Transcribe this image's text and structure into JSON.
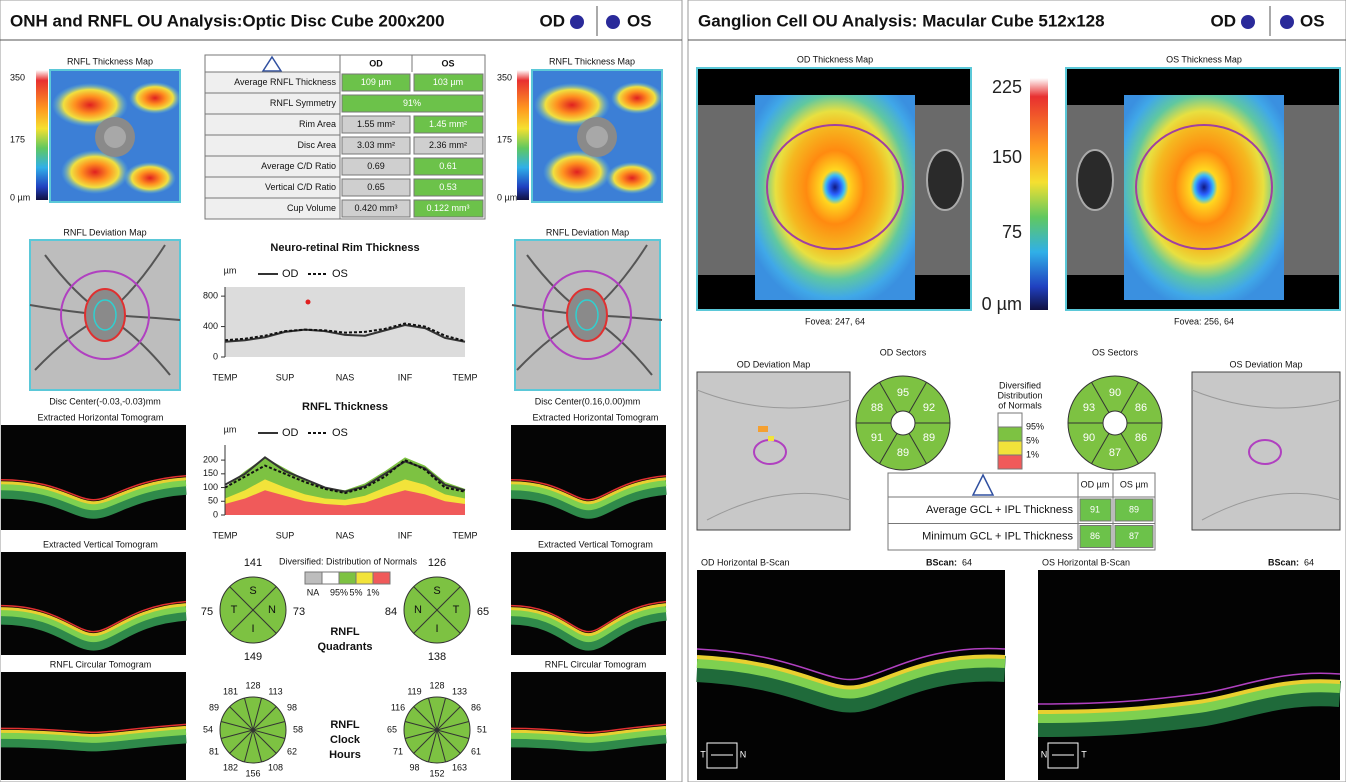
{
  "left": {
    "title": "ONH and RNFL OU Analysis:Optic Disc Cube 200x200",
    "od": "OD",
    "os": "OS",
    "thickness_map_od": {
      "title": "RNFL Thickness Map",
      "scale": [
        "350",
        "175",
        "0 µm"
      ]
    },
    "thickness_map_os": {
      "title": "RNFL Thickness Map",
      "scale": [
        "350",
        "175",
        "0 µm"
      ]
    },
    "table": {
      "header": [
        "OD",
        "OS"
      ],
      "rows": [
        {
          "label": "Average RNFL Thickness",
          "od": "109 µm",
          "os": "103 µm",
          "od_fill": "#6cc24a",
          "os_fill": "#6cc24a"
        },
        {
          "label": "RNFL Symmetry",
          "value": "91%",
          "fill": "#6cc24a"
        },
        {
          "label": "Rim Area",
          "od": "1.55 mm²",
          "os": "1.45 mm²",
          "od_fill": "#cfcfcf",
          "os_fill": "#6cc24a"
        },
        {
          "label": "Disc Area",
          "od": "3.03 mm²",
          "os": "2.36 mm²",
          "od_fill": "#cfcfcf",
          "os_fill": "#cfcfcf"
        },
        {
          "label": "Average C/D Ratio",
          "od": "0.69",
          "os": "0.61",
          "od_fill": "#cfcfcf",
          "os_fill": "#6cc24a"
        },
        {
          "label": "Vertical C/D Ratio",
          "od": "0.65",
          "os": "0.53",
          "od_fill": "#cfcfcf",
          "os_fill": "#6cc24a"
        },
        {
          "label": "Cup Volume",
          "od": "0.420 mm³",
          "os": "0.122 mm³",
          "od_fill": "#cfcfcf",
          "os_fill": "#6cc24a"
        }
      ]
    },
    "deviation_od": {
      "title": "RNFL Deviation Map",
      "disc_center": "Disc Center(-0.03,-0.03)mm"
    },
    "deviation_os": {
      "title": "RNFL Deviation Map",
      "disc_center": "Disc Center(0.16,0.00)mm"
    },
    "tomograms_od": [
      "Extracted Horizontal Tomogram",
      "Extracted Vertical Tomogram",
      "RNFL Circular Tomogram"
    ],
    "tomograms_os": [
      "Extracted Horizontal Tomogram",
      "Extracted Vertical Tomogram",
      "RNFL Circular Tomogram"
    ],
    "rim_chart": {
      "type": "line",
      "title": "Neuro-retinal Rim Thickness",
      "unit": "µm",
      "background": "#dcdcdc",
      "categories": [
        "TEMP",
        "SUP",
        "NAS",
        "INF",
        "TEMP"
      ],
      "ylim": [
        0,
        920
      ],
      "yticks": [
        0,
        400,
        800
      ],
      "series": [
        {
          "name": "OD",
          "color": "#333333",
          "style": "solid",
          "values": [
            200,
            220,
            260,
            330,
            360,
            340,
            290,
            280,
            350,
            420,
            380,
            250,
            200
          ]
        },
        {
          "name": "OS",
          "color": "#111111",
          "style": "dotted",
          "values": [
            220,
            240,
            280,
            340,
            360,
            350,
            320,
            330,
            370,
            440,
            400,
            280,
            210
          ]
        }
      ]
    },
    "rnfl_chart": {
      "type": "line",
      "title": "RNFL Thickness",
      "unit": "µm",
      "background": "#ffffff",
      "categories": [
        "TEMP",
        "SUP",
        "NAS",
        "INF",
        "TEMP"
      ],
      "ylim": [
        0,
        255
      ],
      "yticks": [
        0,
        50,
        100,
        150,
        200
      ],
      "bands": [
        {
          "color": "#7dc242",
          "values": [
            100,
            160,
            210,
            170,
            130,
            100,
            90,
            115,
            160,
            210,
            180,
            120,
            95
          ]
        },
        {
          "color": "#f2e33a",
          "values": [
            60,
            90,
            130,
            100,
            75,
            60,
            55,
            70,
            100,
            130,
            110,
            75,
            60
          ]
        },
        {
          "color": "#f05a5a",
          "values": [
            40,
            60,
            90,
            70,
            50,
            40,
            35,
            45,
            70,
            90,
            75,
            50,
            40
          ]
        }
      ],
      "series": [
        {
          "name": "OD",
          "color": "#333333",
          "style": "solid",
          "values": [
            110,
            150,
            210,
            160,
            130,
            100,
            85,
            105,
            150,
            195,
            170,
            110,
            90
          ]
        },
        {
          "name": "OS",
          "color": "#111111",
          "style": "dotted",
          "values": [
            100,
            140,
            180,
            150,
            120,
            95,
            80,
            100,
            140,
            200,
            165,
            100,
            85
          ]
        }
      ]
    },
    "normals_legend": {
      "title": "Diversified: Distribution of Normals",
      "labels": [
        "NA",
        "95%",
        "5%",
        "1%"
      ]
    },
    "quadrants": {
      "label": [
        "RNFL",
        "Quadrants"
      ],
      "od": {
        "letters": [
          "S",
          "N",
          "I",
          "T"
        ],
        "values": [
          141,
          73,
          149,
          75
        ]
      },
      "os": {
        "letters": [
          "S",
          "T",
          "I",
          "N"
        ],
        "values": [
          126,
          65,
          138,
          84
        ]
      }
    },
    "clock_hours": {
      "label": [
        "RNFL",
        "Clock",
        "Hours"
      ],
      "od": [
        128,
        113,
        98,
        58,
        62,
        108,
        156,
        182,
        81,
        54,
        89,
        181
      ],
      "os": [
        128,
        133,
        86,
        51,
        61,
        163,
        152,
        98,
        71,
        65,
        116,
        119
      ]
    }
  },
  "right": {
    "title": "Ganglion Cell OU Analysis: Macular Cube 512x128",
    "od": "OD",
    "os": "OS",
    "thickness_od": {
      "title": "OD Thickness Map",
      "fovea": "Fovea: 247, 64"
    },
    "thickness_os": {
      "title": "OS Thickness Map",
      "fovea": "Fovea: 256, 64"
    },
    "scale": [
      "225",
      "150",
      "75",
      "0 µm"
    ],
    "deviation_od": "OD Deviation Map",
    "deviation_os": "OS Deviation Map",
    "sectors_od": {
      "title": "OD Sectors",
      "values": [
        95,
        92,
        89,
        89,
        91,
        88
      ]
    },
    "sectors_os": {
      "title": "OS Sectors",
      "values": [
        90,
        86,
        86,
        87,
        90,
        93
      ]
    },
    "normals_legend": {
      "title": [
        "Diversified",
        "Distribution",
        "of Normals"
      ],
      "labels": [
        "95%",
        "5%",
        "1%"
      ]
    },
    "table": {
      "header": [
        "OD µm",
        "OS µm"
      ],
      "rows": [
        {
          "label": "Average GCL + IPL Thickness",
          "od": "91",
          "os": "89"
        },
        {
          "label": "Minimum GCL + IPL Thickness",
          "od": "86",
          "os": "87"
        }
      ]
    },
    "bscan_od": {
      "title": "OD Horizontal B-Scan",
      "bscan": "BScan:",
      "number": "64",
      "orient": [
        "T",
        "N"
      ]
    },
    "bscan_os": {
      "title": "OS Horizontal B-Scan",
      "bscan": "BScan:",
      "number": "64",
      "orient": [
        "N",
        "T"
      ]
    }
  }
}
